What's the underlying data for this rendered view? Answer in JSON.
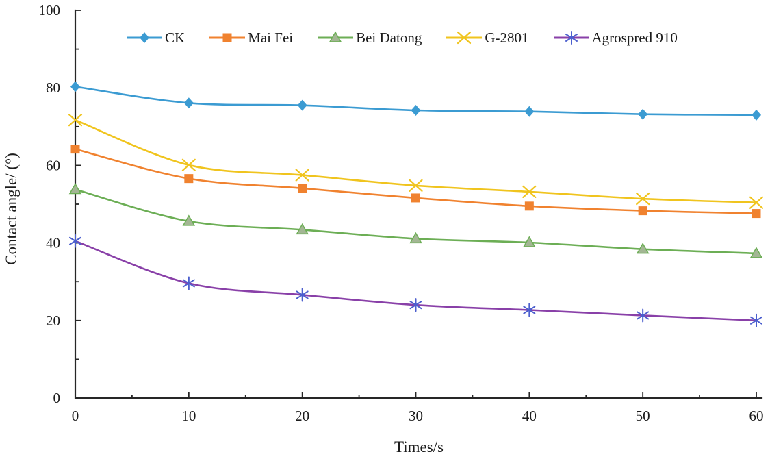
{
  "figure": {
    "background": "#ffffff",
    "axis_color": "#262626",
    "text_color": "#1c1c1c"
  },
  "chart_data": {
    "type": "line",
    "title": "",
    "xlabel": "Times/s",
    "ylabel": "Contact angle/ (°)",
    "xlim": [
      0,
      60
    ],
    "ylim": [
      0,
      100
    ],
    "x_major_tick": 10,
    "x_minor_tick": 5,
    "y_major_tick": 20,
    "y_minor_tick": 10,
    "grid": false,
    "smooth_lines": true,
    "legend_position": "top",
    "x_tick_labels": [
      "0",
      "10",
      "20",
      "30",
      "40",
      "50",
      "60"
    ],
    "y_tick_labels": [
      "0",
      "20",
      "40",
      "60",
      "80",
      "100"
    ],
    "x": [
      0,
      10,
      20,
      30,
      40,
      50,
      60
    ],
    "series": [
      {
        "name": "CK",
        "marker": "diamond",
        "color": "#3B9BD2",
        "marker_color": "#3B9BD2",
        "values": [
          80.3,
          76.1,
          75.5,
          74.2,
          73.9,
          73.2,
          73.0
        ]
      },
      {
        "name": "Mai Fei",
        "marker": "square",
        "color": "#F0822F",
        "marker_color": "#F0822F",
        "values": [
          64.2,
          56.6,
          54.1,
          51.6,
          49.5,
          48.3,
          47.6
        ]
      },
      {
        "name": "Bei Datong",
        "marker": "triangle",
        "color": "#6CAE55",
        "marker_color": "#A3B694",
        "marker_edge": "#6CAE55",
        "values": [
          53.8,
          45.6,
          43.4,
          41.1,
          40.1,
          38.4,
          37.3
        ]
      },
      {
        "name": "G-2801",
        "marker": "x",
        "color": "#F0C41E",
        "marker_color": "#F0C41E",
        "values": [
          71.7,
          60.1,
          57.5,
          54.8,
          53.2,
          51.4,
          50.4
        ]
      },
      {
        "name": "Agrospred 910",
        "marker": "asterisk",
        "color": "#8940A8",
        "marker_color": "#4C5FCE",
        "values": [
          40.5,
          29.6,
          26.6,
          24.0,
          22.7,
          21.3,
          20.0
        ]
      }
    ]
  }
}
